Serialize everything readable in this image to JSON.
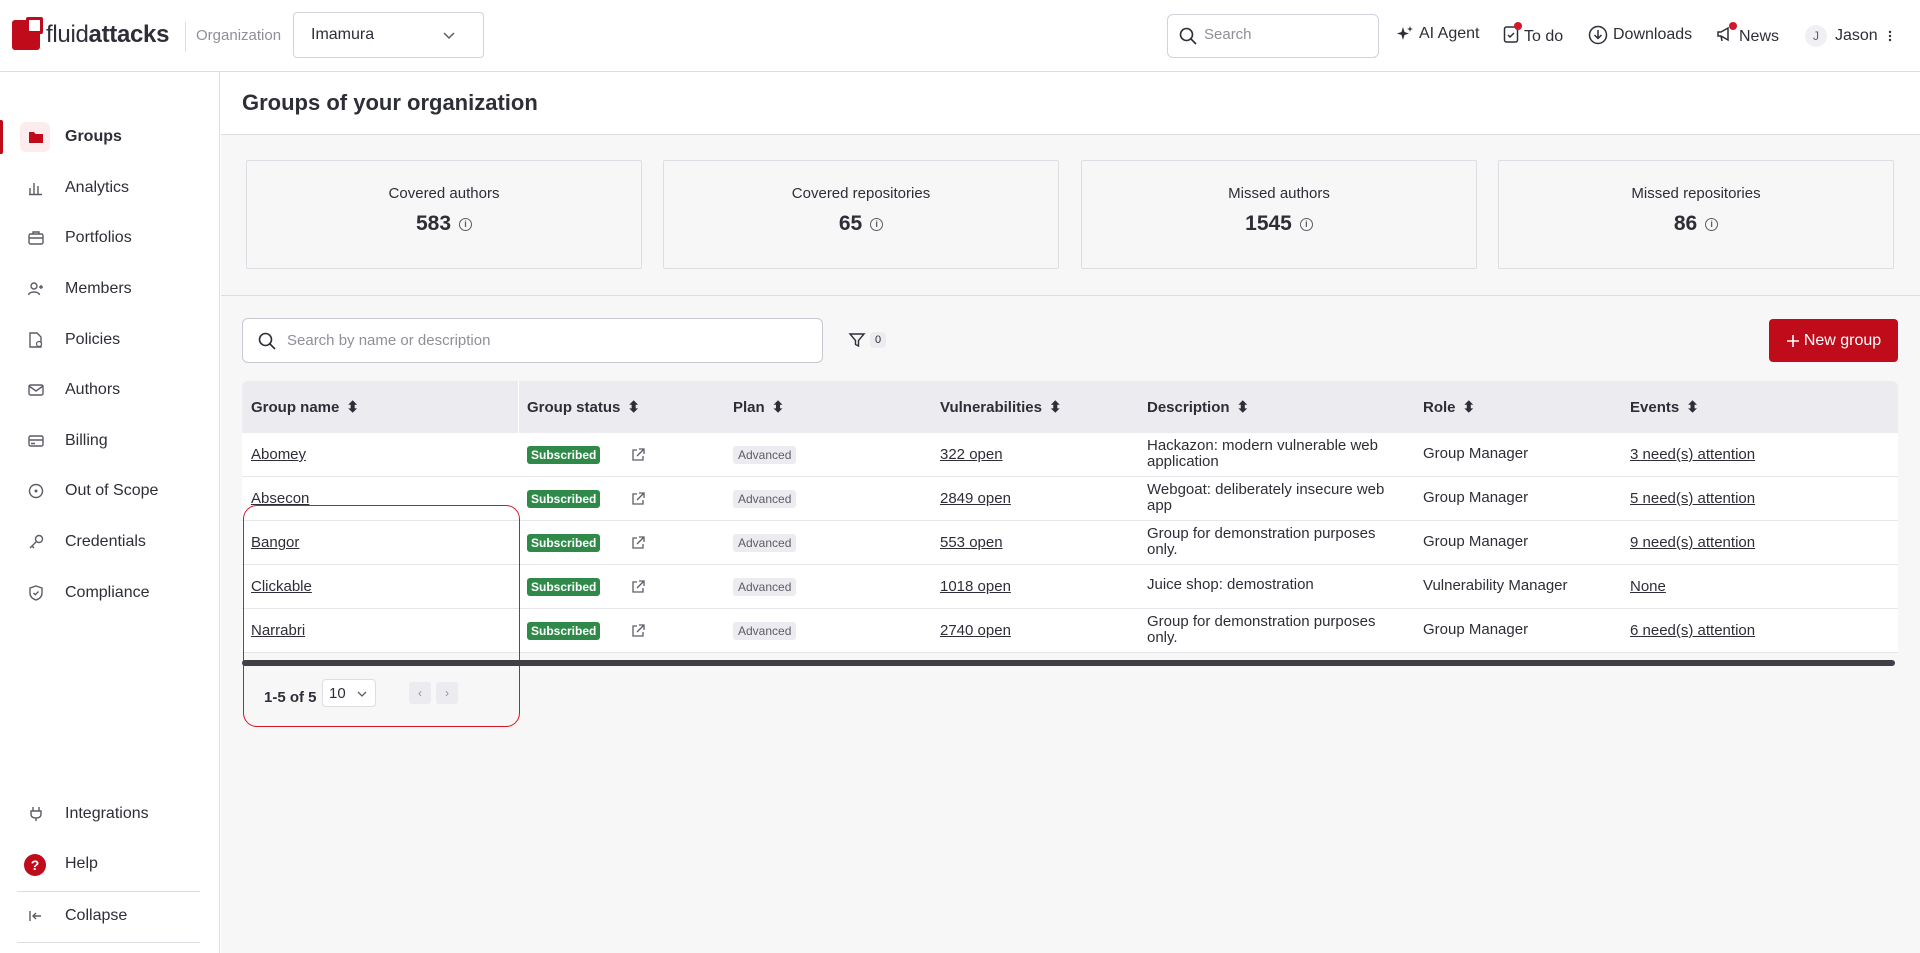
{
  "brand": {
    "name_light": "fluid",
    "name_bold": "attacks"
  },
  "header": {
    "org_label": "Organization",
    "org_value": "Imamura",
    "search_placeholder": "Search",
    "ai_agent": "AI Agent",
    "todo": "To do",
    "downloads": "Downloads",
    "news": "News",
    "user_initial": "J",
    "user_name": "Jason"
  },
  "sidebar": {
    "items": [
      {
        "label": "Groups",
        "icon": "folder-icon"
      },
      {
        "label": "Analytics",
        "icon": "chart-icon"
      },
      {
        "label": "Portfolios",
        "icon": "briefcase-icon"
      },
      {
        "label": "Members",
        "icon": "user-plus-icon"
      },
      {
        "label": "Policies",
        "icon": "document-icon"
      },
      {
        "label": "Authors",
        "icon": "mail-icon"
      },
      {
        "label": "Billing",
        "icon": "credit-card-icon"
      },
      {
        "label": "Out of Scope",
        "icon": "target-icon"
      },
      {
        "label": "Credentials",
        "icon": "key-icon"
      },
      {
        "label": "Compliance",
        "icon": "shield-check-icon"
      }
    ],
    "bottom": {
      "integrations": "Integrations",
      "help": "Help",
      "help_glyph": "?",
      "collapse": "Collapse"
    }
  },
  "page": {
    "title": "Groups of your organization"
  },
  "stats": [
    {
      "label": "Covered authors",
      "value": "583"
    },
    {
      "label": "Covered repositories",
      "value": "65"
    },
    {
      "label": "Missed authors",
      "value": "1545"
    },
    {
      "label": "Missed repositories",
      "value": "86"
    }
  ],
  "toolbar": {
    "search_placeholder": "Search by name or description",
    "filter_count": "0",
    "new_group": "New group"
  },
  "table": {
    "columns": [
      "Group name",
      "Group status",
      "Plan",
      "Vulnerabilities",
      "Description",
      "Role",
      "Events"
    ],
    "rows": [
      {
        "name": "Abomey",
        "status": "Subscribed",
        "plan": "Advanced",
        "vulns": "322 open",
        "desc": "Hackazon: modern vulnerable web application",
        "role": "Group Manager",
        "events": "3 need(s) attention"
      },
      {
        "name": "Absecon",
        "status": "Subscribed",
        "plan": "Advanced",
        "vulns": "2849 open",
        "desc": "Webgoat: deliberately insecure web app",
        "role": "Group Manager",
        "events": "5 need(s) attention"
      },
      {
        "name": "Bangor",
        "status": "Subscribed",
        "plan": "Advanced",
        "vulns": "553 open",
        "desc": "Group for demonstration purposes only.",
        "role": "Group Manager",
        "events": "9 need(s) attention"
      },
      {
        "name": "Clickable",
        "status": "Subscribed",
        "plan": "Advanced",
        "vulns": "1018 open",
        "desc": "Juice shop: demostration",
        "role": "Vulnerability Manager",
        "events": "None"
      },
      {
        "name": "Narrabri",
        "status": "Subscribed",
        "plan": "Advanced",
        "vulns": "2740 open",
        "desc": "Group for demonstration purposes only.",
        "role": "Group Manager",
        "events": "6 need(s) attention"
      }
    ]
  },
  "pagination": {
    "range": "1-5 of 5",
    "page_size": "10"
  },
  "colors": {
    "brand_red": "#bf0b1a",
    "subscribed_green": "#2f8a4a"
  }
}
